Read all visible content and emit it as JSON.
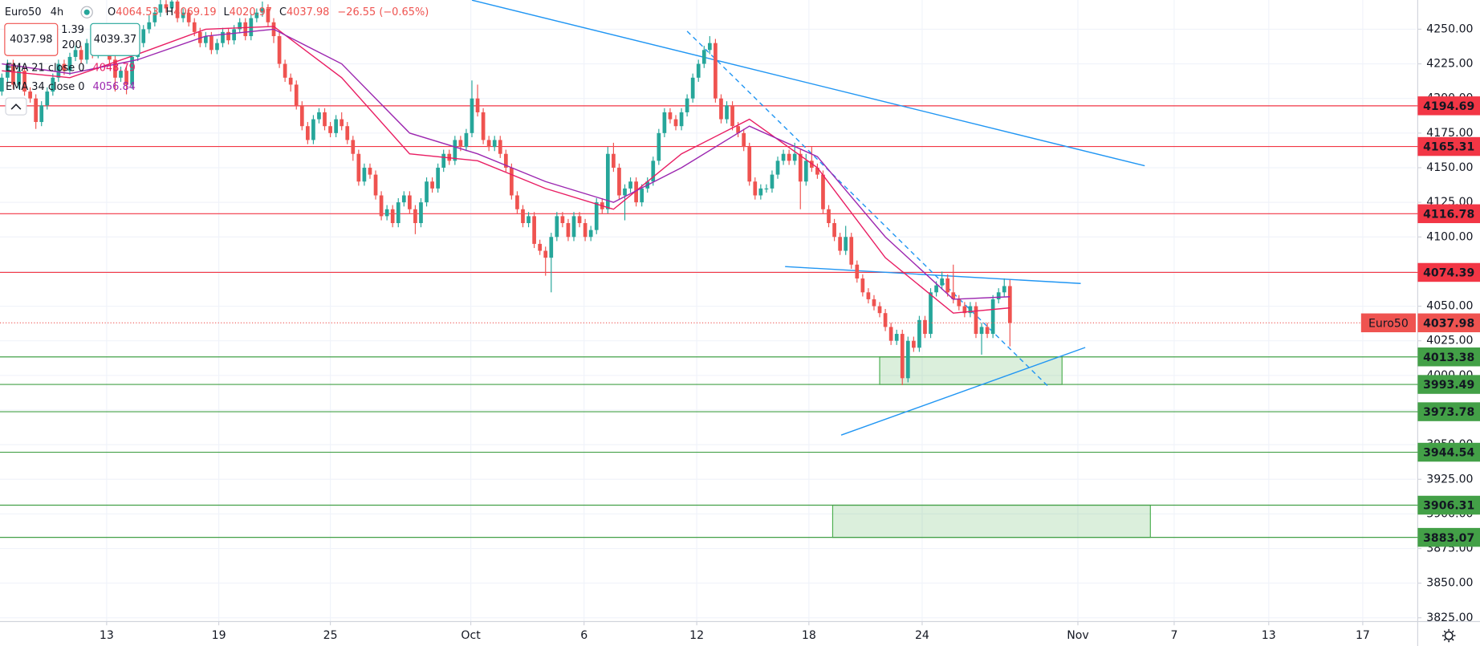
{
  "header": {
    "interval": "4h",
    "ohlc_labels": [
      "O",
      "H",
      "L",
      "C"
    ],
    "change": "−26.55 (−0.65%)",
    "spread": 1.39,
    "quantity": 200,
    "ask": 4039.37
  },
  "chart_data": {
    "type": "candlestick",
    "series": [
      {
        "name": "Euro50",
        "up_color": "#26a69a",
        "down_color": "#ef5350",
        "open": [
          4205,
          4215,
          4225,
          4210,
          4220,
          4205,
          4200,
          4183,
          4195,
          4205,
          4215,
          4225,
          4220,
          4230,
          4235,
          4228,
          4240,
          4232,
          4245,
          4238,
          4228,
          4215,
          4220,
          4210,
          4230,
          4240,
          4250,
          4255,
          4262,
          4268,
          4265,
          4270,
          4258,
          4262,
          4255,
          4248,
          4240,
          4245,
          4235,
          4240,
          4248,
          4242,
          4250,
          4255,
          4245,
          4258,
          4262,
          4265,
          4255,
          4245,
          4225,
          4215,
          4210,
          4195,
          4180,
          4170,
          4185,
          4190,
          4180,
          4175,
          4185,
          4180,
          4170,
          4160,
          4140,
          4150,
          4145,
          4130,
          4115,
          4120,
          4110,
          4125,
          4130,
          4120,
          4110,
          4125,
          4140,
          4135,
          4150,
          4160,
          4155,
          4170,
          4165,
          4175,
          4200,
          4190,
          4170,
          4165,
          4170,
          4160,
          4150,
          4130,
          4120,
          4110,
          4115,
          4095,
          4090,
          4085,
          4100,
          4115,
          4110,
          4100,
          4115,
          4110,
          4100,
          4105,
          4125,
          4120,
          4160,
          4150,
          4130,
          4135,
          4140,
          4125,
          4135,
          4140,
          4155,
          4175,
          4190,
          4185,
          4180,
          4190,
          4200,
          4215,
          4225,
          4235,
          4240,
          4200,
          4185,
          4195,
          4180,
          4175,
          4165,
          4140,
          4130,
          4135,
          4135,
          4145,
          4155,
          4160,
          4155,
          4160,
          4140,
          4155,
          4150,
          4145,
          4120,
          4110,
          4100,
          4090,
          4100,
          4080,
          4070,
          4060,
          4055,
          4050,
          4045,
          4035,
          4025,
          4030,
          3998,
          4025,
          4020,
          4040,
          4030,
          4060,
          4065,
          4070,
          4060,
          4055,
          4050,
          4045,
          4050,
          4030,
          4035,
          4030,
          4055,
          4060,
          4064.53
        ],
        "high": [
          4218,
          4228,
          4228,
          4223,
          4223,
          4208,
          4203,
          4198,
          4208,
          4218,
          4228,
          4228,
          4233,
          4238,
          4238,
          4243,
          4243,
          4248,
          4248,
          4241,
          4231,
          4223,
          4223,
          4233,
          4243,
          4253,
          4260,
          4266,
          4272,
          4271,
          4274,
          4273,
          4265,
          4265,
          4258,
          4251,
          4248,
          4248,
          4243,
          4251,
          4251,
          4253,
          4258,
          4258,
          4261,
          4265,
          4270,
          4268,
          4258,
          4248,
          4228,
          4218,
          4213,
          4198,
          4183,
          4188,
          4193,
          4193,
          4183,
          4188,
          4190,
          4183,
          4173,
          4163,
          4153,
          4153,
          4148,
          4133,
          4123,
          4123,
          4128,
          4133,
          4133,
          4123,
          4128,
          4143,
          4143,
          4153,
          4163,
          4163,
          4173,
          4173,
          4178,
          4213,
          4210,
          4193,
          4173,
          4173,
          4173,
          4163,
          4153,
          4133,
          4123,
          4118,
          4118,
          4098,
          4093,
          4103,
          4118,
          4118,
          4113,
          4118,
          4118,
          4113,
          4108,
          4128,
          4128,
          4165,
          4168,
          4153,
          4138,
          4143,
          4143,
          4138,
          4143,
          4158,
          4178,
          4193,
          4193,
          4188,
          4193,
          4203,
          4218,
          4228,
          4238,
          4245,
          4243,
          4203,
          4198,
          4198,
          4183,
          4178,
          4168,
          4143,
          4138,
          4138,
          4148,
          4158,
          4163,
          4163,
          4168,
          4163,
          4160,
          4165,
          4153,
          4148,
          4123,
          4113,
          4103,
          4108,
          4103,
          4083,
          4073,
          4063,
          4058,
          4053,
          4048,
          4038,
          4033,
          4033,
          4028,
          4028,
          4043,
          4043,
          4063,
          4068,
          4075,
          4073,
          4080,
          4058,
          4053,
          4053,
          4053,
          4038,
          4038,
          4058,
          4063,
          4070,
          4069.19
        ],
        "low": [
          4202,
          4212,
          4207,
          4207,
          4202,
          4197,
          4178,
          4180,
          4192,
          4202,
          4212,
          4217,
          4217,
          4227,
          4225,
          4225,
          4229,
          4229,
          4235,
          4225,
          4205,
          4212,
          4203,
          4207,
          4227,
          4237,
          4247,
          4252,
          4259,
          4262,
          4262,
          4255,
          4255,
          4252,
          4245,
          4237,
          4237,
          4232,
          4232,
          4237,
          4239,
          4239,
          4247,
          4242,
          4242,
          4255,
          4259,
          4252,
          4240,
          4222,
          4212,
          4205,
          4192,
          4177,
          4167,
          4167,
          4182,
          4177,
          4172,
          4172,
          4177,
          4167,
          4155,
          4137,
          4137,
          4142,
          4127,
          4112,
          4112,
          4107,
          4107,
          4122,
          4117,
          4102,
          4107,
          4122,
          4132,
          4132,
          4147,
          4152,
          4152,
          4162,
          4162,
          4172,
          4187,
          4167,
          4162,
          4162,
          4157,
          4147,
          4127,
          4117,
          4107,
          4107,
          4092,
          4087,
          4072,
          4060,
          4097,
          4107,
          4097,
          4097,
          4107,
          4097,
          4097,
          4102,
          4117,
          4117,
          4147,
          4127,
          4112,
          4132,
          4122,
          4122,
          4132,
          4137,
          4152,
          4172,
          4182,
          4177,
          4177,
          4187,
          4197,
          4212,
          4222,
          4232,
          4197,
          4182,
          4182,
          4177,
          4172,
          4162,
          4137,
          4127,
          4127,
          4132,
          4132,
          4142,
          4152,
          4152,
          4152,
          4120,
          4137,
          4147,
          4142,
          4117,
          4107,
          4097,
          4087,
          4087,
          4077,
          4067,
          4057,
          4052,
          4047,
          4042,
          4032,
          4022,
          4022,
          3993,
          3995,
          4017,
          4017,
          4027,
          4027,
          4057,
          4062,
          4057,
          4052,
          4047,
          4042,
          4042,
          4027,
          4015,
          4027,
          4027,
          4052,
          4057,
          4020.97
        ],
        "close": [
          4215,
          4225,
          4210,
          4220,
          4205,
          4200,
          4183,
          4195,
          4205,
          4215,
          4225,
          4220,
          4230,
          4235,
          4228,
          4240,
          4232,
          4245,
          4238,
          4228,
          4215,
          4220,
          4210,
          4230,
          4240,
          4250,
          4255,
          4262,
          4268,
          4265,
          4270,
          4258,
          4262,
          4255,
          4248,
          4240,
          4245,
          4235,
          4240,
          4248,
          4242,
          4250,
          4255,
          4245,
          4258,
          4262,
          4265,
          4255,
          4245,
          4225,
          4215,
          4210,
          4195,
          4180,
          4170,
          4185,
          4190,
          4180,
          4175,
          4185,
          4180,
          4170,
          4160,
          4140,
          4150,
          4145,
          4130,
          4115,
          4120,
          4110,
          4125,
          4130,
          4120,
          4110,
          4125,
          4140,
          4135,
          4150,
          4160,
          4155,
          4170,
          4165,
          4175,
          4200,
          4190,
          4170,
          4165,
          4170,
          4160,
          4150,
          4130,
          4120,
          4110,
          4115,
          4095,
          4090,
          4085,
          4100,
          4115,
          4110,
          4100,
          4115,
          4110,
          4100,
          4105,
          4125,
          4120,
          4160,
          4150,
          4130,
          4135,
          4140,
          4125,
          4135,
          4140,
          4155,
          4175,
          4190,
          4185,
          4180,
          4190,
          4200,
          4215,
          4225,
          4235,
          4240,
          4200,
          4185,
          4195,
          4180,
          4175,
          4165,
          4140,
          4130,
          4135,
          4135,
          4145,
          4155,
          4160,
          4155,
          4160,
          4140,
          4155,
          4150,
          4145,
          4120,
          4110,
          4100,
          4090,
          4100,
          4080,
          4070,
          4060,
          4055,
          4050,
          4045,
          4035,
          4025,
          4030,
          3998,
          4025,
          4020,
          4040,
          4030,
          4060,
          4065,
          4070,
          4060,
          4055,
          4050,
          4045,
          4050,
          4030,
          4035,
          4030,
          4055,
          4060,
          4064.53,
          4037.98
        ]
      }
    ],
    "ema": [
      {
        "name": "EMA 21 close 0",
        "color": "#e91e63",
        "x": [
          0,
          12,
          24,
          36,
          48,
          60,
          72,
          84,
          96,
          108,
          120,
          132,
          144,
          156,
          168,
          178
        ],
        "values": [
          4220,
          4215,
          4232,
          4250,
          4252,
          4215,
          4160,
          4155,
          4135,
          4120,
          4160,
          4185,
          4150,
          4085,
          4045,
          4048.79
        ]
      },
      {
        "name": "EMA 34 close 0",
        "color": "#9c27b0",
        "x": [
          0,
          12,
          24,
          36,
          48,
          60,
          72,
          84,
          96,
          108,
          120,
          132,
          144,
          156,
          168,
          178
        ],
        "values": [
          4225,
          4218,
          4228,
          4245,
          4250,
          4225,
          4175,
          4160,
          4140,
          4125,
          4150,
          4180,
          4158,
          4100,
          4055,
          4056.84
        ]
      }
    ],
    "levels": [
      {
        "value": 4194.69,
        "color": "#f23645"
      },
      {
        "value": 4165.31,
        "color": "#f23645"
      },
      {
        "value": 4116.78,
        "color": "#f23645"
      },
      {
        "value": 4074.39,
        "color": "#f23645"
      },
      {
        "value": 4013.38,
        "color": "#43a047"
      },
      {
        "value": 3993.49,
        "color": "#43a047"
      },
      {
        "value": 3973.78,
        "color": "#43a047"
      },
      {
        "value": 3944.54,
        "color": "#43a047"
      },
      {
        "value": 3906.31,
        "color": "#43a047"
      },
      {
        "value": 3883.07,
        "color": "#43a047"
      }
    ],
    "zones": [
      {
        "x": [
          155,
          187.2
        ],
        "y": [
          3993.49,
          4013.38
        ],
        "color": "#4caf50"
      },
      {
        "x": [
          146.7,
          202.8
        ],
        "y": [
          3883.07,
          3906.31
        ],
        "color": "#4caf50"
      }
    ],
    "trendlines": [
      {
        "x": [
          83,
          201.8
        ],
        "y": [
          4271,
          4151.4
        ],
        "color": "#2196f3",
        "dashed": false
      },
      {
        "x": [
          121,
          184.7
        ],
        "y": [
          4248.6,
          3992.3
        ],
        "color": "#2196f3",
        "dashed": true
      },
      {
        "x": [
          138.3,
          190.5
        ],
        "y": [
          4078.6,
          4066.4
        ],
        "color": "#2196f3",
        "dashed": false
      },
      {
        "x": [
          148.2,
          191.3
        ],
        "y": [
          3956.9,
          4020.2
        ],
        "color": "#2196f3",
        "dashed": false
      }
    ],
    "xlim": [
      -0.33,
      249.67
    ],
    "ylim": [
      3822.3,
      4271.1
    ],
    "xticks": [
      {
        "value": 18.5,
        "label": "13"
      },
      {
        "value": 38.3,
        "label": "19"
      },
      {
        "value": 58,
        "label": "25"
      },
      {
        "value": 82.8,
        "label": "Oct"
      },
      {
        "value": 102.8,
        "label": "6"
      },
      {
        "value": 122.7,
        "label": "12"
      },
      {
        "value": 142.5,
        "label": "18"
      },
      {
        "value": 162.5,
        "label": "24"
      },
      {
        "value": 190,
        "label": "Nov"
      },
      {
        "value": 207,
        "label": "7"
      },
      {
        "value": 223.7,
        "label": "13"
      },
      {
        "value": 240.3,
        "label": "17"
      }
    ],
    "yticks": [
      {
        "value": 3825,
        "label": "3825.00"
      },
      {
        "value": 3850,
        "label": "3850.00"
      },
      {
        "value": 3875,
        "label": "3875.00"
      },
      {
        "value": 3900,
        "label": "3900.00"
      },
      {
        "value": 3925,
        "label": "3925.00"
      },
      {
        "value": 3950,
        "label": "3950.00"
      },
      {
        "value": 3975,
        "label": "3975.00"
      },
      {
        "value": 4000,
        "label": "4000.00"
      },
      {
        "value": 4025,
        "label": "4025.00"
      },
      {
        "value": 4050,
        "label": "4050.00"
      },
      {
        "value": 4075,
        "label": "4075.00"
      },
      {
        "value": 4100,
        "label": "4100.00"
      },
      {
        "value": 4125,
        "label": "4125.00"
      },
      {
        "value": 4150,
        "label": "4150.00"
      },
      {
        "value": 4175,
        "label": "4175.00"
      },
      {
        "value": 4200,
        "label": "4200.00"
      },
      {
        "value": 4225,
        "label": "4225.00"
      },
      {
        "value": 4250,
        "label": "4250.00"
      }
    ],
    "grid": true
  }
}
